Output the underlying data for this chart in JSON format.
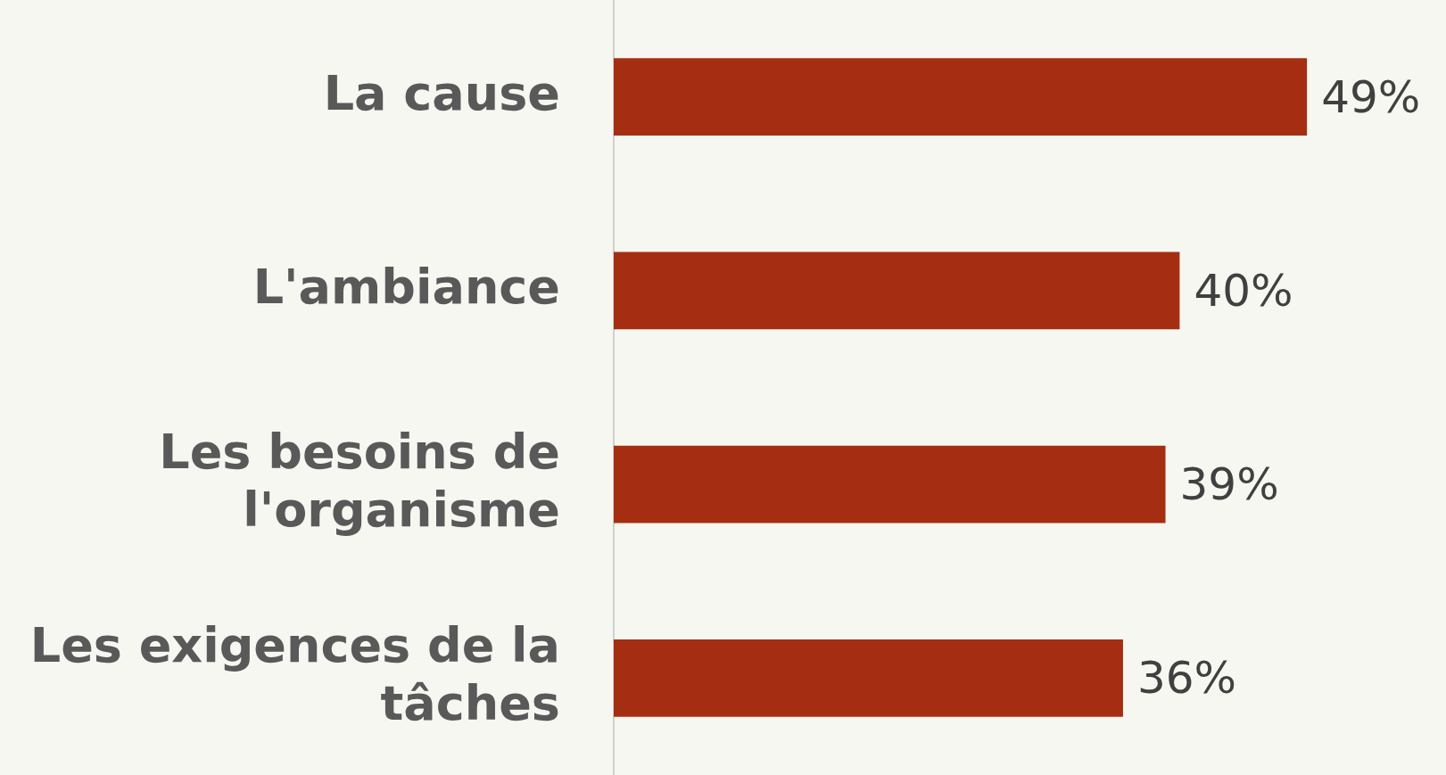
{
  "chart_data": {
    "type": "bar",
    "orientation": "horizontal",
    "categories": [
      "La cause",
      "L'ambiance",
      "Les besoins de l'organisme",
      "Les exigences de la tâches"
    ],
    "values": [
      49,
      40,
      39,
      36
    ],
    "color": "#a52e12",
    "tick_labels": "y",
    "legend": false,
    "data_labels": true,
    "value_labels": [
      "49%",
      "40%",
      "39%",
      "36%"
    ]
  }
}
